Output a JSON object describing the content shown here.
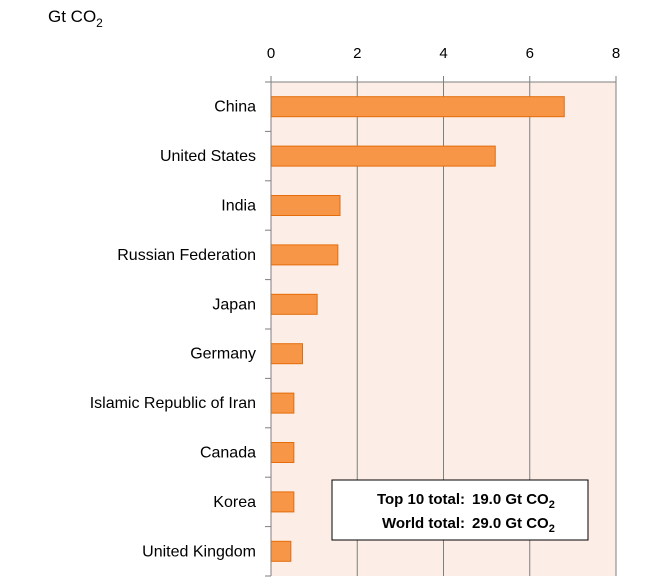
{
  "chart_data": {
    "type": "bar",
    "orientation": "horizontal",
    "unit_label": {
      "base": "Gt CO",
      "sub": "2"
    },
    "x_axis_position": "top",
    "xlim": [
      0,
      8
    ],
    "xticks": [
      "0",
      "2",
      "4",
      "6",
      "8"
    ],
    "grid": true,
    "plot_background": "#FCEEE6",
    "bar_color": "#F79646",
    "bar_border": "#E46C0A",
    "categories": [
      "China",
      "United States",
      "India",
      "Russian Federation",
      "Japan",
      "Germany",
      "Islamic Republic of Iran",
      "Canada",
      "Korea",
      "United Kingdom"
    ],
    "values": [
      6.8,
      5.2,
      1.6,
      1.55,
      1.07,
      0.73,
      0.53,
      0.53,
      0.53,
      0.46
    ],
    "summary_box": {
      "lines": [
        {
          "label": "Top 10 total:",
          "value": "19.0 Gt CO",
          "sub": "2"
        },
        {
          "label": "World total:",
          "value": "29.0 Gt CO",
          "sub": "2"
        }
      ]
    }
  }
}
